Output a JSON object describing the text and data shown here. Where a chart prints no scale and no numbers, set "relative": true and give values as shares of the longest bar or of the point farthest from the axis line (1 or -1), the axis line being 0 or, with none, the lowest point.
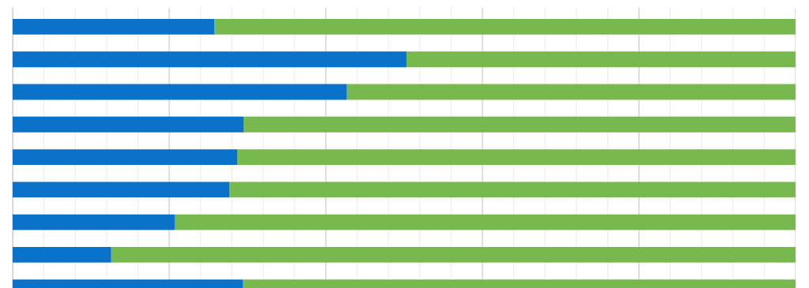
{
  "chart_data": {
    "type": "bar",
    "orientation": "horizontal",
    "stacked": true,
    "relative": true,
    "grid": "x",
    "categories": [
      null,
      null,
      null,
      null,
      null,
      null,
      null,
      null,
      null
    ],
    "series": [
      {
        "color": "#0a72c8",
        "values": [
          0.258,
          0.503,
          0.427,
          0.295,
          0.287,
          0.277,
          0.207,
          0.126,
          0.294
        ]
      },
      {
        "color": "#78b94f",
        "values": [
          0.742,
          0.497,
          0.573,
          0.705,
          0.713,
          0.723,
          0.793,
          0.874,
          0.706
        ]
      }
    ]
  }
}
